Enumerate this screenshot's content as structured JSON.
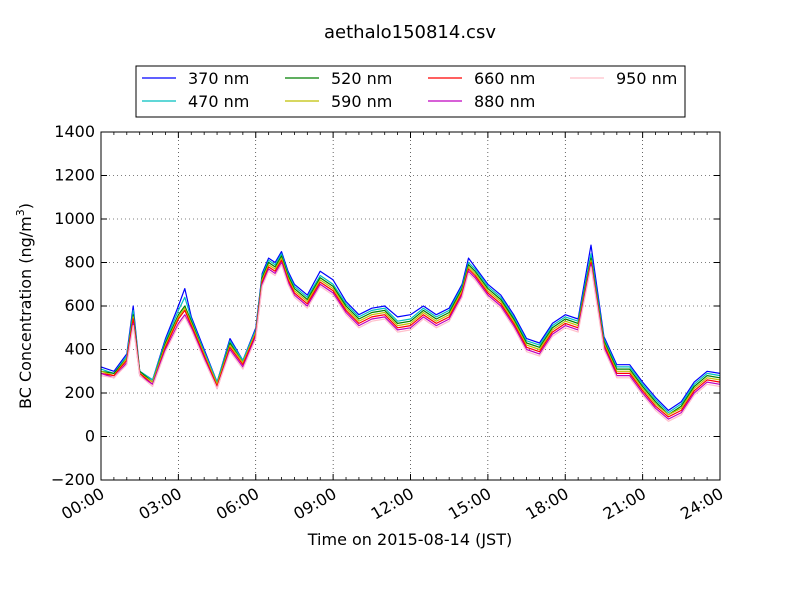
{
  "chart_data": {
    "type": "line",
    "title": "aethalo150814.csv",
    "xlabel": "Time on 2015-08-14 (JST)",
    "ylabel": "BC Concentration (ng/m",
    "ylabel_sup": "3",
    "ylabel_end": ")",
    "xlim": [
      0,
      24
    ],
    "ylim": [
      -200,
      1400
    ],
    "grid": true,
    "legend_position": "top-center",
    "x_ticks": [
      0,
      3,
      6,
      9,
      12,
      15,
      18,
      21,
      24
    ],
    "x_tick_labels": [
      "00:00",
      "03:00",
      "06:00",
      "09:00",
      "12:00",
      "15:00",
      "18:00",
      "21:00",
      "24:00"
    ],
    "y_ticks": [
      -200,
      0,
      200,
      400,
      600,
      800,
      1000,
      1200,
      1400
    ],
    "y_tick_labels": [
      "−200",
      "0",
      "200",
      "400",
      "600",
      "800",
      "1000",
      "1200",
      "1400"
    ],
    "x": [
      0.0,
      0.5,
      1.0,
      1.25,
      1.5,
      2.0,
      2.5,
      3.0,
      3.25,
      3.5,
      4.0,
      4.5,
      5.0,
      5.5,
      6.0,
      6.25,
      6.5,
      6.75,
      7.0,
      7.25,
      7.5,
      8.0,
      8.5,
      9.0,
      9.5,
      10.0,
      10.5,
      11.0,
      11.5,
      12.0,
      12.5,
      13.0,
      13.5,
      14.0,
      14.25,
      14.5,
      15.0,
      15.5,
      16.0,
      16.5,
      17.0,
      17.5,
      18.0,
      18.5,
      19.0,
      19.5,
      20.0,
      20.5,
      21.0,
      21.5,
      22.0,
      22.5,
      23.0,
      23.5,
      24.0
    ],
    "series": [
      {
        "name": "370 nm",
        "color": "#0000ff",
        "values": [
          320,
          300,
          380,
          600,
          300,
          260,
          450,
          600,
          680,
          550,
          400,
          250,
          450,
          350,
          500,
          750,
          820,
          800,
          850,
          760,
          700,
          650,
          760,
          720,
          620,
          560,
          590,
          600,
          550,
          560,
          600,
          560,
          590,
          700,
          820,
          780,
          700,
          650,
          560,
          450,
          430,
          520,
          560,
          540,
          880,
          460,
          330,
          330,
          250,
          180,
          120,
          160,
          250,
          300,
          290
        ]
      },
      {
        "name": "470 nm",
        "color": "#00bfbf",
        "values": [
          310,
          290,
          370,
          580,
          300,
          260,
          440,
          580,
          640,
          540,
          390,
          250,
          440,
          350,
          490,
          740,
          810,
          790,
          840,
          750,
          690,
          640,
          740,
          700,
          610,
          550,
          580,
          590,
          530,
          540,
          590,
          550,
          580,
          690,
          800,
          770,
          690,
          640,
          550,
          440,
          420,
          510,
          550,
          530,
          840,
          450,
          320,
          320,
          240,
          170,
          110,
          150,
          240,
          290,
          280
        ]
      },
      {
        "name": "520 nm",
        "color": "#007f00",
        "values": [
          300,
          290,
          360,
          560,
          300,
          250,
          430,
          560,
          600,
          530,
          380,
          240,
          430,
          340,
          480,
          730,
          800,
          780,
          830,
          740,
          680,
          630,
          730,
          690,
          600,
          540,
          570,
          580,
          520,
          530,
          580,
          540,
          570,
          680,
          790,
          760,
          680,
          630,
          540,
          430,
          410,
          500,
          540,
          520,
          820,
          440,
          310,
          310,
          230,
          160,
          100,
          140,
          230,
          280,
          270
        ]
      },
      {
        "name": "590 nm",
        "color": "#bfbf00",
        "values": [
          300,
          280,
          360,
          550,
          290,
          250,
          420,
          550,
          590,
          520,
          380,
          240,
          420,
          340,
          480,
          720,
          790,
          770,
          820,
          730,
          670,
          620,
          720,
          680,
          590,
          530,
          560,
          570,
          510,
          520,
          570,
          530,
          560,
          670,
          780,
          750,
          670,
          620,
          530,
          420,
          400,
          490,
          530,
          510,
          810,
          430,
          300,
          300,
          220,
          150,
          100,
          130,
          220,
          270,
          260
        ]
      },
      {
        "name": "660 nm",
        "color": "#ff0000",
        "values": [
          290,
          280,
          350,
          540,
          290,
          240,
          410,
          540,
          580,
          510,
          370,
          230,
          410,
          330,
          470,
          710,
          780,
          760,
          810,
          720,
          660,
          610,
          710,
          670,
          580,
          520,
          550,
          560,
          500,
          510,
          560,
          520,
          550,
          660,
          770,
          740,
          660,
          610,
          520,
          410,
          390,
          480,
          520,
          500,
          800,
          420,
          290,
          290,
          210,
          140,
          90,
          120,
          210,
          260,
          250
        ]
      },
      {
        "name": "880 nm",
        "color": "#bf00bf",
        "values": [
          290,
          270,
          340,
          520,
          280,
          240,
          400,
          520,
          560,
          500,
          360,
          220,
          400,
          320,
          460,
          700,
          770,
          750,
          800,
          710,
          650,
          600,
          700,
          660,
          570,
          510,
          540,
          550,
          490,
          500,
          550,
          510,
          540,
          650,
          760,
          730,
          650,
          600,
          510,
          400,
          380,
          470,
          510,
          490,
          790,
          410,
          280,
          280,
          200,
          130,
          80,
          110,
          200,
          250,
          240
        ]
      },
      {
        "name": "950 nm",
        "color": "#ffc0cb",
        "values": [
          280,
          270,
          330,
          510,
          280,
          230,
          390,
          510,
          550,
          490,
          350,
          220,
          390,
          310,
          450,
          690,
          760,
          740,
          790,
          700,
          640,
          590,
          690,
          650,
          560,
          500,
          530,
          540,
          480,
          490,
          540,
          500,
          530,
          640,
          750,
          720,
          640,
          590,
          500,
          390,
          370,
          460,
          500,
          480,
          780,
          400,
          270,
          270,
          190,
          120,
          70,
          100,
          190,
          240,
          230
        ]
      }
    ]
  }
}
